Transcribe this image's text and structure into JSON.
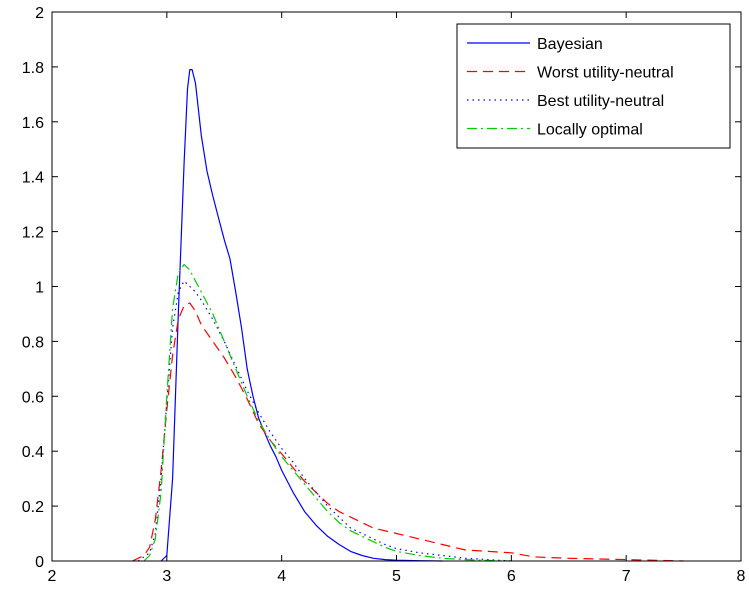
{
  "chart_data": {
    "type": "line",
    "title": "",
    "xlabel": "",
    "ylabel": "",
    "xlim": [
      2,
      8
    ],
    "ylim": [
      0,
      2
    ],
    "xticks": [
      "2",
      "3",
      "4",
      "5",
      "6",
      "7",
      "8"
    ],
    "yticks": [
      "0",
      "0.2",
      "0.4",
      "0.6",
      "0.8",
      "1",
      "1.2",
      "1.4",
      "1.6",
      "1.8",
      "2"
    ],
    "grid": false,
    "legend_position": "top-right",
    "series": [
      {
        "name": "Bayesian",
        "color": "#0000ff",
        "style": "solid",
        "x": [
          2.95,
          3.0,
          3.05,
          3.1,
          3.15,
          3.18,
          3.2,
          3.22,
          3.25,
          3.3,
          3.35,
          3.4,
          3.45,
          3.5,
          3.55,
          3.6,
          3.65,
          3.7,
          3.75,
          3.8,
          3.85,
          3.9,
          3.95,
          4.0,
          4.1,
          4.2,
          4.3,
          4.4,
          4.5,
          4.6,
          4.7,
          4.8,
          4.9,
          5.0,
          5.2,
          5.4
        ],
        "y": [
          0.0,
          0.02,
          0.3,
          0.9,
          1.45,
          1.72,
          1.79,
          1.79,
          1.74,
          1.55,
          1.42,
          1.33,
          1.25,
          1.17,
          1.1,
          0.98,
          0.85,
          0.7,
          0.6,
          0.52,
          0.47,
          0.42,
          0.38,
          0.33,
          0.25,
          0.18,
          0.13,
          0.09,
          0.06,
          0.035,
          0.02,
          0.01,
          0.005,
          0.003,
          0.001,
          0.0
        ]
      },
      {
        "name": "Worst utility-neutral",
        "color": "#ff0000",
        "style": "dashed",
        "x": [
          2.7,
          2.8,
          2.85,
          2.9,
          2.95,
          3.0,
          3.05,
          3.1,
          3.15,
          3.2,
          3.25,
          3.3,
          3.4,
          3.5,
          3.6,
          3.7,
          3.8,
          3.9,
          4.0,
          4.1,
          4.2,
          4.3,
          4.4,
          4.5,
          4.6,
          4.7,
          4.8,
          5.0,
          5.2,
          5.4,
          5.6,
          5.8,
          6.0,
          6.2,
          6.5,
          7.0,
          7.5
        ],
        "y": [
          0.0,
          0.02,
          0.05,
          0.15,
          0.33,
          0.55,
          0.75,
          0.88,
          0.93,
          0.94,
          0.91,
          0.86,
          0.8,
          0.74,
          0.67,
          0.59,
          0.5,
          0.44,
          0.39,
          0.34,
          0.29,
          0.25,
          0.21,
          0.18,
          0.16,
          0.14,
          0.12,
          0.1,
          0.08,
          0.06,
          0.04,
          0.035,
          0.03,
          0.015,
          0.01,
          0.005,
          0.0
        ]
      },
      {
        "name": "Best utility-neutral",
        "color": "#0000ff",
        "style": "dotted",
        "x": [
          2.75,
          2.85,
          2.9,
          2.95,
          3.0,
          3.05,
          3.1,
          3.15,
          3.2,
          3.25,
          3.3,
          3.4,
          3.5,
          3.6,
          3.7,
          3.8,
          3.9,
          4.0,
          4.1,
          4.2,
          4.3,
          4.4,
          4.5,
          4.6,
          4.7,
          4.8,
          4.9,
          5.0,
          5.2,
          5.4,
          5.6,
          5.8,
          6.0
        ],
        "y": [
          0.0,
          0.03,
          0.1,
          0.3,
          0.58,
          0.85,
          0.98,
          1.02,
          1.0,
          0.98,
          0.95,
          0.88,
          0.8,
          0.71,
          0.62,
          0.54,
          0.47,
          0.41,
          0.36,
          0.3,
          0.25,
          0.2,
          0.16,
          0.12,
          0.1,
          0.08,
          0.06,
          0.045,
          0.03,
          0.02,
          0.01,
          0.005,
          0.0
        ]
      },
      {
        "name": "Locally optimal",
        "color": "#00cc00",
        "style": "dashdot",
        "x": [
          2.8,
          2.85,
          2.9,
          2.95,
          3.0,
          3.05,
          3.1,
          3.15,
          3.2,
          3.25,
          3.3,
          3.4,
          3.5,
          3.6,
          3.7,
          3.8,
          3.9,
          4.0,
          4.1,
          4.2,
          4.3,
          4.4,
          4.5,
          4.6,
          4.7,
          4.8,
          4.9,
          5.0,
          5.2,
          5.4,
          5.6,
          5.8,
          6.0
        ],
        "y": [
          0.0,
          0.02,
          0.08,
          0.25,
          0.6,
          0.92,
          1.05,
          1.08,
          1.06,
          1.02,
          0.98,
          0.9,
          0.8,
          0.7,
          0.6,
          0.51,
          0.44,
          0.38,
          0.33,
          0.28,
          0.23,
          0.18,
          0.14,
          0.11,
          0.09,
          0.07,
          0.05,
          0.035,
          0.02,
          0.01,
          0.005,
          0.002,
          0.0
        ]
      }
    ]
  }
}
